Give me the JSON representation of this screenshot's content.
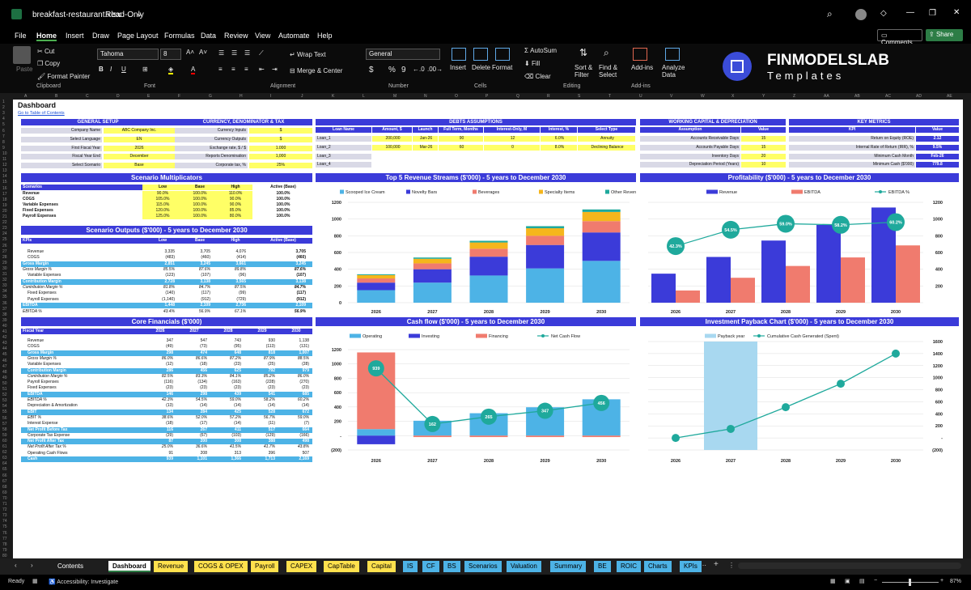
{
  "window": {
    "filename": "breakfast-restaurant.xlsx",
    "mode": "Read-Only"
  },
  "menu": [
    "File",
    "Home",
    "Insert",
    "Draw",
    "Page Layout",
    "Formulas",
    "Data",
    "Review",
    "View",
    "Automate",
    "Help"
  ],
  "menu_active": "Home",
  "comments_label": "Comments",
  "share_label": "Share",
  "ribbon": {
    "paste": "Paste",
    "cut": "Cut",
    "copy": "Copy",
    "format_painter": "Format Painter",
    "clipboard": "Clipboard",
    "font_name": "Tahoma",
    "font_size": "8",
    "font": "Font",
    "wrap": "Wrap Text",
    "merge": "Merge & Center",
    "alignment": "Alignment",
    "number_format": "General",
    "number": "Number",
    "insert": "Insert",
    "delete": "Delete",
    "format": "Format",
    "cells": "Cells",
    "autosum": "AutoSum",
    "fill": "Fill",
    "clear": "Clear",
    "sort": "Sort & Filter",
    "find": "Find & Select",
    "editing": "Editing",
    "addins": "Add-ins",
    "addins_group": "Add-ins",
    "analyze": "Analyze Data",
    "logo_main": "FINMODELSLAB",
    "logo_sub": "Templates"
  },
  "sheet": {
    "title": "Dashboard",
    "link": "Go to Table of Contents"
  },
  "general_setup": {
    "header": "GENERAL SETUP",
    "rows": [
      [
        "Company Name",
        "ABC Company Inc."
      ],
      [
        "Select Language",
        "EN"
      ],
      [
        "First Fiscal Year",
        "2026"
      ],
      [
        "Fiscal Year End",
        "December"
      ],
      [
        "Select Scenario",
        "Base"
      ]
    ]
  },
  "currency": {
    "header": "CURRENCY, DENOMINATOR & TAX",
    "rows": [
      [
        "Currency Inputs",
        "$"
      ],
      [
        "Currency Outputs",
        "$"
      ],
      [
        "Exchange rate, $ / $",
        "1.000"
      ],
      [
        "Reports Denomination",
        "1,000"
      ],
      [
        "Corporate tax, %",
        "25%"
      ]
    ]
  },
  "debts": {
    "header": "DEBTS ASSUMPTIONS",
    "cols": [
      "Loan Name",
      "Amount, $",
      "Launch",
      "Full Term, Months",
      "Interest-Only, M",
      "Interest, %",
      "Select Type"
    ],
    "rows": [
      [
        "Loan_1",
        "200,000",
        "Jan-26",
        "90",
        "12",
        "6.0%",
        "Annuity"
      ],
      [
        "Loan_2",
        "100,000",
        "Mar-26",
        "60",
        "0",
        "8.0%",
        "Declining Balance"
      ],
      [
        "Loan_3",
        "",
        "",
        "",
        "",
        "",
        ""
      ],
      [
        "Loan_4",
        "",
        "",
        "",
        "",
        "",
        ""
      ]
    ]
  },
  "working_capital": {
    "header": "WORKING CAPITAL & DEPRECIATION",
    "cols": [
      "Assumption",
      "Value"
    ],
    "rows": [
      [
        "Accounts Receivable Days",
        "15"
      ],
      [
        "Accounts Payable Days",
        "15"
      ],
      [
        "Inventory Days",
        "20"
      ],
      [
        "Depreciation Period (Years)",
        "10"
      ]
    ]
  },
  "key_metrics": {
    "header": "KEY METRICS",
    "cols": [
      "KPI",
      "Value"
    ],
    "rows": [
      [
        "Return on Equity (ROE)",
        "2.12"
      ],
      [
        "Internal Rate of Return (IRR), %",
        "9.5%"
      ],
      [
        "Minimum Cash Month",
        "Feb-26"
      ],
      [
        "Minimum Cash ($'000)",
        "779.8"
      ]
    ]
  },
  "scenario_mult": {
    "header": "Scenario Multiplicators",
    "cols": [
      "Scenarios",
      "Low",
      "Base",
      "High",
      "Active (Base)"
    ],
    "rows": [
      [
        "Revenue",
        "90.0%",
        "100.0%",
        "110.0%",
        "100.0%"
      ],
      [
        "COGS",
        "105.0%",
        "100.0%",
        "90.0%",
        "100.0%"
      ],
      [
        "Variable Expenses",
        "115.0%",
        "100.0%",
        "90.0%",
        "100.0%"
      ],
      [
        "Fixed Expenses",
        "120.0%",
        "100.0%",
        "85.0%",
        "100.0%"
      ],
      [
        "Payroll Expenses",
        "125.0%",
        "100.0%",
        "80.0%",
        "100.0%"
      ]
    ]
  },
  "scenario_out": {
    "header": "Scenario Outputs ($'000) - 5 years to December 2030",
    "cols": [
      "KPIs",
      "Low",
      "Base",
      "High",
      "Active (Base)"
    ],
    "rows": [
      [
        "Revenue",
        "3,335",
        "3,705",
        "4,076",
        "3,705",
        "n"
      ],
      [
        "COGS",
        "(483)",
        "(460)",
        "(414)",
        "(460)",
        "n"
      ],
      [
        "Gross Margin",
        "2,851",
        "3,245",
        "3,661",
        "3,245",
        "h"
      ],
      [
        "Gross Margin %",
        "85.5%",
        "87.6%",
        "89.8%",
        "87.6%",
        "i"
      ],
      [
        "Variable Expenses",
        "(123)",
        "(107)",
        "(96)",
        "(107)",
        "n"
      ],
      [
        "Contribution Margin",
        "2,728",
        "3,138",
        "3,565",
        "3,138",
        "h"
      ],
      [
        "Contribution Margin %",
        "81.8%",
        "84.7%",
        "87.5%",
        "84.7%",
        "i"
      ],
      [
        "Fixed Expenses",
        "(140)",
        "(117)",
        "(99)",
        "(117)",
        "n"
      ],
      [
        "Payroll Expenses",
        "(1,140)",
        "(912)",
        "(729)",
        "(912)",
        "n"
      ],
      [
        "EBITDA",
        "1,448",
        "2,109",
        "2,736",
        "2,109",
        "h"
      ],
      [
        "EBITDA %",
        "43.4%",
        "56.9%",
        "67.1%",
        "56.9%",
        "i"
      ]
    ]
  },
  "core_fin": {
    "header": "Core Financials ($'000)",
    "cols": [
      "Fiscal Year",
      "2026",
      "2027",
      "2028",
      "2029",
      "2030"
    ],
    "rows": [
      [
        "Revenue",
        "347",
        "547",
        "743",
        "930",
        "1,138",
        "n"
      ],
      [
        "COGS",
        "(49)",
        "(73)",
        "(95)",
        "(113)",
        "(131)",
        "n"
      ],
      [
        "Gross Margin",
        "298",
        "474",
        "648",
        "818",
        "1,007",
        "h"
      ],
      [
        "Gross Margin %",
        "86.0%",
        "86.6%",
        "87.2%",
        "87.9%",
        "88.5%",
        "i"
      ],
      [
        "Variable Expenses",
        "(12)",
        "(18)",
        "(23)",
        "(25)",
        "(28)",
        "n"
      ],
      [
        "Contribution Margin",
        "286",
        "456",
        "625",
        "792",
        "979",
        "h"
      ],
      [
        "Contribution Margin %",
        "82.5%",
        "83.3%",
        "84.1%",
        "85.2%",
        "86.0%",
        "i"
      ],
      [
        "Payroll Expenses",
        "(116)",
        "(134)",
        "(163)",
        "(228)",
        "(270)",
        "n"
      ],
      [
        "Fixed Expenses",
        "(23)",
        "(23)",
        "(23)",
        "(23)",
        "(23)",
        "n"
      ],
      [
        "EBITDA",
        "146",
        "298",
        "439",
        "541",
        "685",
        "h"
      ],
      [
        "EBITDA %",
        "42.3%",
        "54.5%",
        "59.0%",
        "58.2%",
        "60.2%",
        "i"
      ],
      [
        "Depreciation & Amortization",
        "(13)",
        "(14)",
        "(14)",
        "(14)",
        "(14)",
        "n"
      ],
      [
        "EBIT",
        "134",
        "284",
        "425",
        "528",
        "672",
        "h"
      ],
      [
        "EBIT %",
        "38.6%",
        "52.0%",
        "57.2%",
        "56.7%",
        "59.0%",
        "i"
      ],
      [
        "Interest Expense",
        "(18)",
        "(17)",
        "(14)",
        "(11)",
        "(7)",
        "n"
      ],
      [
        "Net Profit Before Tax",
        "116",
        "267",
        "411",
        "517",
        "664",
        "h"
      ],
      [
        "Corporate Tax Expense",
        "(29)",
        "(67)",
        "(103)",
        "(129)",
        "(166)",
        "n"
      ],
      [
        "Net Profit After Tax",
        "87",
        "200",
        "308",
        "388",
        "498",
        "h"
      ],
      [
        "Net Profit After Tax %",
        "25.0%",
        "36.6%",
        "41.5%",
        "41.7%",
        "43.8%",
        "i"
      ],
      [
        "Operating Cash Flows",
        "91",
        "208",
        "313",
        "396",
        "507",
        "n"
      ],
      [
        "Cash",
        "939",
        "1,101",
        "1,366",
        "1,713",
        "2,169",
        "h"
      ]
    ]
  },
  "chart_data": [
    {
      "type": "bar",
      "title": "Top 5 Revenue Streams ($'000) - 5 years to December 2030",
      "categories": [
        "2026",
        "2027",
        "2028",
        "2029",
        "2030"
      ],
      "stacked": true,
      "ylim": [
        0,
        1200
      ],
      "yticks": [
        0,
        200,
        400,
        600,
        800,
        1000,
        1200
      ],
      "legend": "top",
      "series": [
        {
          "name": "Scooped Ice Cream",
          "color": "#4db3e6",
          "values": [
            150,
            240,
            325,
            410,
            500
          ]
        },
        {
          "name": "Novelty Bars",
          "color": "#3b3bd9",
          "values": [
            90,
            160,
            225,
            280,
            340
          ]
        },
        {
          "name": "Beverages",
          "color": "#f07b6e",
          "values": [
            50,
            70,
            95,
            110,
            135
          ]
        },
        {
          "name": "Specialty Items",
          "color": "#f5b61c",
          "values": [
            40,
            55,
            75,
            90,
            110
          ]
        },
        {
          "name": "Other Revenue",
          "color": "#1fa99c",
          "values": [
            10,
            15,
            20,
            25,
            30
          ]
        }
      ]
    },
    {
      "type": "bar",
      "title": "Profitability ($'000) - 5 years to December 2030",
      "categories": [
        "2026",
        "2027",
        "2028",
        "2029",
        "2030"
      ],
      "ylim": [
        0,
        1200
      ],
      "yticks": [
        200,
        400,
        600,
        800,
        1000,
        1200
      ],
      "legend": "top",
      "series": [
        {
          "name": "Revenue",
          "color": "#3b3bd9",
          "values": [
            347,
            547,
            743,
            930,
            1138
          ]
        },
        {
          "name": "EBITDA",
          "color": "#f07b6e",
          "values": [
            146,
            298,
            439,
            541,
            685
          ]
        }
      ],
      "line": {
        "name": "EBITDA %",
        "color": "#1fa99c",
        "values": [
          42.3,
          54.5,
          59.0,
          58.2,
          60.2
        ],
        "labels": [
          "42.3%",
          "54.5%",
          "59.0%",
          "58.2%",
          "60.2%"
        ],
        "ylim": [
          0,
          75
        ]
      }
    },
    {
      "type": "bar",
      "title": "Cash flow ($'000) - 5 years to December 2030",
      "categories": [
        "2026",
        "2027",
        "2028",
        "2029",
        "2030"
      ],
      "ylim": [
        -200,
        1200
      ],
      "yticks": [
        1200,
        1000,
        800,
        600,
        400,
        200,
        "-",
        "(200)"
      ],
      "legend": "top",
      "series": [
        {
          "name": "Operating",
          "color": "#4db3e6",
          "values": [
            91,
            208,
            313,
            396,
            507
          ]
        },
        {
          "name": "Investing",
          "color": "#3b3bd9",
          "values": [
            -120,
            0,
            0,
            0,
            0
          ]
        },
        {
          "name": "Financing",
          "color": "#f07b6e",
          "values": [
            1070,
            -20,
            -20,
            -20,
            -20
          ]
        }
      ],
      "line": {
        "name": "Net Cash Flow",
        "color": "#1fa99c",
        "values": [
          939,
          162,
          265,
          347,
          456
        ],
        "labels": [
          "939",
          "162",
          "265",
          "347",
          "456"
        ]
      }
    },
    {
      "type": "line",
      "title": "Investment Payback Chart ($'000) - 5 years to December 2030",
      "categories": [
        "2026",
        "2027",
        "2028",
        "2029",
        "2030"
      ],
      "ylim": [
        -200,
        1600
      ],
      "yticks": [
        1600,
        1400,
        1200,
        1000,
        800,
        600,
        400,
        200,
        "-",
        "(200)"
      ],
      "legend": "top",
      "payback": {
        "name": "Payback year",
        "color": "#a8d8f0",
        "category": "2027"
      },
      "series": [
        {
          "name": "Cumulative Cash Generated (Spent)",
          "color": "#1fa99c",
          "values": [
            0,
            150,
            510,
            900,
            1400
          ]
        }
      ]
    }
  ],
  "tabs": [
    {
      "label": "Contents",
      "bg": "#1e1e1e",
      "fg": "#fff"
    },
    {
      "label": "Dashboard",
      "bg": "#ffffff",
      "fg": "#000",
      "active": true
    },
    {
      "label": "Revenue",
      "bg": "#ffe14d",
      "fg": "#000"
    },
    {
      "label": "COGS & OPEX",
      "bg": "#ffe14d",
      "fg": "#000"
    },
    {
      "label": "Payroll",
      "bg": "#ffe14d",
      "fg": "#000"
    },
    {
      "label": "CAPEX",
      "bg": "#ffe14d",
      "fg": "#000"
    },
    {
      "label": "CapTable",
      "bg": "#ffe14d",
      "fg": "#000"
    },
    {
      "label": "Capital",
      "bg": "#ffe14d",
      "fg": "#000"
    },
    {
      "label": "IS",
      "bg": "#4db3e6",
      "fg": "#000"
    },
    {
      "label": "CF",
      "bg": "#4db3e6",
      "fg": "#000"
    },
    {
      "label": "BS",
      "bg": "#4db3e6",
      "fg": "#000"
    },
    {
      "label": "Scenarios",
      "bg": "#4db3e6",
      "fg": "#000"
    },
    {
      "label": "Valuation",
      "bg": "#4db3e6",
      "fg": "#000"
    },
    {
      "label": "Summary",
      "bg": "#4db3e6",
      "fg": "#000"
    },
    {
      "label": "BE",
      "bg": "#4db3e6",
      "fg": "#000"
    },
    {
      "label": "ROIC",
      "bg": "#4db3e6",
      "fg": "#000"
    },
    {
      "label": "Charts",
      "bg": "#4db3e6",
      "fg": "#000"
    },
    {
      "label": "KPIs",
      "bg": "#4db3e6",
      "fg": "#000"
    }
  ],
  "status": {
    "ready": "Ready",
    "accessibility": "Accessibility: Investigate",
    "zoom": "87%"
  }
}
